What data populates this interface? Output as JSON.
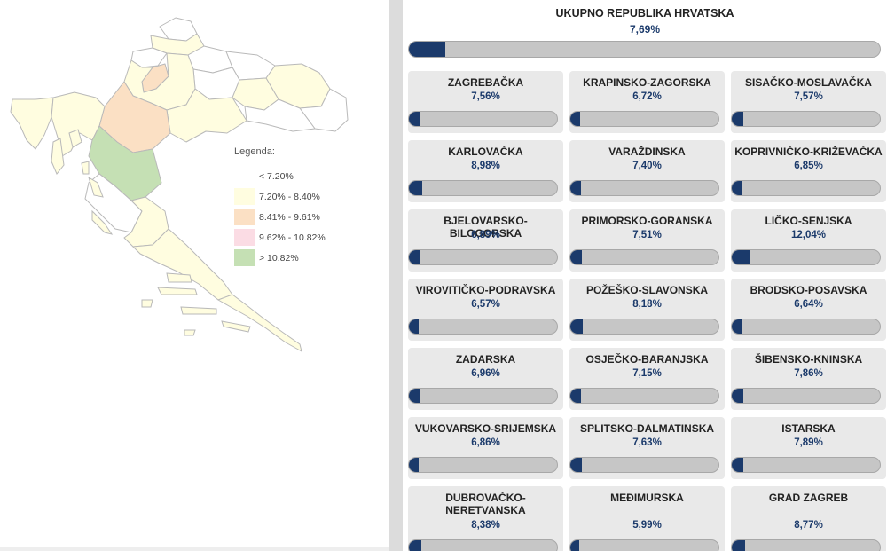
{
  "map": {
    "legend_title": "Legenda:",
    "legend_items": [
      {
        "label": "< 7.20%",
        "color": "#ffffff"
      },
      {
        "label": "7.20% - 8.40%",
        "color": "#fffde0"
      },
      {
        "label": "8.41% - 9.61%",
        "color": "#fbe0c4"
      },
      {
        "label": "9.62% - 10.82%",
        "color": "#fbdce4"
      },
      {
        "label": "> 10.82%",
        "color": "#c5e0b4"
      }
    ]
  },
  "colors": {
    "bar_fill": "#1b3a6b",
    "bar_track": "#c6c6c6",
    "card_bg": "#e9e9e9",
    "value_text": "#1b3a6b"
  },
  "total": {
    "title": "UKUPNO REPUBLIKA HRVATSKA",
    "value": "7,69%",
    "percent": 7.69
  },
  "counties": [
    {
      "name": "ZAGREBAČKA",
      "value": "7,56%",
      "percent": 7.56
    },
    {
      "name": "KRAPINSKO-ZAGORSKA",
      "value": "6,72%",
      "percent": 6.72
    },
    {
      "name": "SISAČKO-MOSLAVAČKA",
      "value": "7,57%",
      "percent": 7.57
    },
    {
      "name": "KARLOVAČKA",
      "value": "8,98%",
      "percent": 8.98
    },
    {
      "name": "VARAŽDINSKA",
      "value": "7,40%",
      "percent": 7.4
    },
    {
      "name": "KOPRIVNIČKO-KRIŽEVAČKA",
      "value": "6,85%",
      "percent": 6.85
    },
    {
      "name": "BJELOVARSKO-BILOGORSKA",
      "value": "6,89%",
      "percent": 6.89
    },
    {
      "name": "PRIMORSKO-GORANSKA",
      "value": "7,51%",
      "percent": 7.51
    },
    {
      "name": "LIČKO-SENJSKA",
      "value": "12,04%",
      "percent": 12.04
    },
    {
      "name": "VIROVITIČKO-PODRAVSKA",
      "value": "6,57%",
      "percent": 6.57
    },
    {
      "name": "POŽEŠKO-SLAVONSKA",
      "value": "8,18%",
      "percent": 8.18
    },
    {
      "name": "BRODSKO-POSAVSKA",
      "value": "6,64%",
      "percent": 6.64
    },
    {
      "name": "ZADARSKA",
      "value": "6,96%",
      "percent": 6.96
    },
    {
      "name": "OSJEČKO-BARANJSKA",
      "value": "7,15%",
      "percent": 7.15
    },
    {
      "name": "ŠIBENSKO-KNINSKA",
      "value": "7,86%",
      "percent": 7.86
    },
    {
      "name": "VUKOVARSKO-SRIJEMSKA",
      "value": "6,86%",
      "percent": 6.86
    },
    {
      "name": "SPLITSKO-DALMATINSKA",
      "value": "7,63%",
      "percent": 7.63
    },
    {
      "name": "ISTARSKA",
      "value": "7,89%",
      "percent": 7.89
    },
    {
      "name": "DUBROVAČKO-NERETVANSKA",
      "value": "8,38%",
      "percent": 8.38
    },
    {
      "name": "MEĐIMURSKA",
      "value": "5,99%",
      "percent": 5.99
    },
    {
      "name": "GRAD ZAGREB",
      "value": "8,77%",
      "percent": 8.77
    }
  ]
}
